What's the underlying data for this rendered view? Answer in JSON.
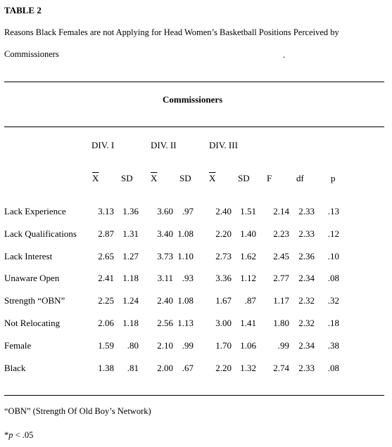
{
  "table": {
    "label": "TABLE 2",
    "caption_line1": "Reasons Black Females are not Applying for Head Women’s Basketball Positions Perceived by",
    "caption_line2": "Commissioners",
    "caption_dot": ".",
    "group_heading": "Commissioners",
    "divisions": [
      "DIV. I",
      "DIV. II",
      "DIV. III"
    ],
    "columns": [
      "X",
      "SD",
      "X",
      "SD",
      "X",
      "SD",
      "F",
      "df",
      "p"
    ],
    "rows": [
      {
        "label": "Lack Experience",
        "values": [
          "3.13",
          "1.36",
          "3.60",
          ".97",
          "2.40",
          "1.51",
          "2.14",
          "2.33",
          ".13"
        ]
      },
      {
        "label": "Lack Qualifications",
        "values": [
          "2.87",
          "1.31",
          "3.40",
          "1.08",
          "2.20",
          "1.40",
          "2.23",
          "2.33",
          ".12"
        ]
      },
      {
        "label": "Lack Interest",
        "values": [
          "2.65",
          "1.27",
          "3.73",
          "1.10",
          "2.73",
          "1.62",
          "2.45",
          "2.36",
          ".10"
        ]
      },
      {
        "label": "Unaware Open",
        "values": [
          "2.41",
          "1.18",
          "3.11",
          ".93",
          "3.36",
          "1.12",
          "2.77",
          "2.34",
          ".08"
        ]
      },
      {
        "label": "Strength “OBN”",
        "values": [
          "2.25",
          "1.24",
          "2.40",
          "1.08",
          "1.67",
          ".87",
          "1.17",
          "2.32",
          ".32"
        ]
      },
      {
        "label": "Not Relocating",
        "values": [
          "2.06",
          "1.18",
          "2.56",
          "1.13",
          "3.00",
          "1.41",
          "1.80",
          "2.32",
          ".18"
        ]
      },
      {
        "label": "Female",
        "values": [
          "1.59",
          ".80",
          "2.10",
          ".99",
          "1.70",
          "1.06",
          ".99",
          "2.34",
          ".38"
        ]
      },
      {
        "label": "Black",
        "values": [
          "1.38",
          ".81",
          "2.00",
          ".67",
          "2.20",
          "1.32",
          "2.74",
          "2.33",
          ".08"
        ]
      }
    ],
    "footnote1": "“OBN” (Strength Of Old Boy’s Network)",
    "footnote2_prefix": "*",
    "footnote2_p": "p",
    "footnote2_rest": " < .05"
  }
}
